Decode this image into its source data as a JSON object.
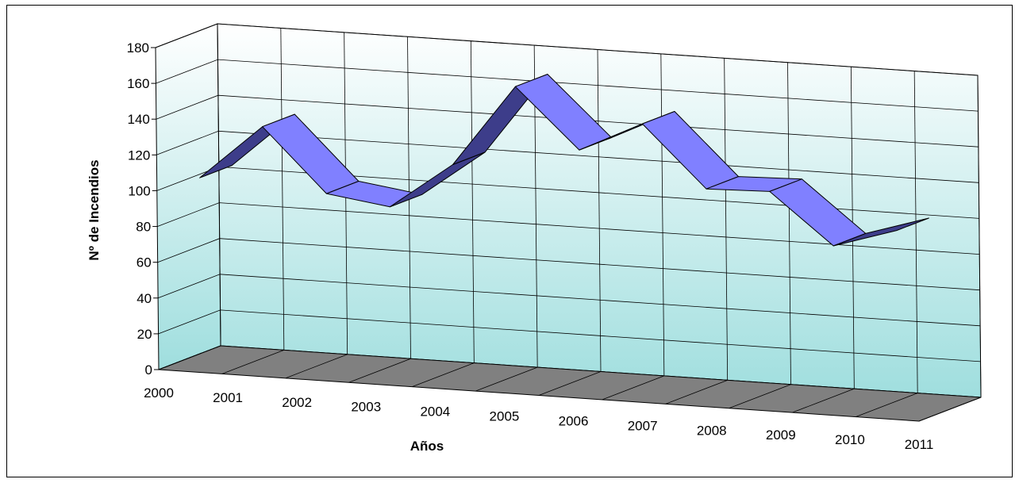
{
  "chart_data": {
    "type": "line",
    "style": "3d-ribbon",
    "categories": [
      "2000",
      "2001",
      "2002",
      "2003",
      "2004",
      "2005",
      "2006",
      "2007",
      "2008",
      "2009",
      "2010",
      "2011"
    ],
    "series": [
      {
        "values": [
          106,
          137,
          102,
          97,
          123,
          169,
          136,
          153,
          119,
          120,
          92,
          103
        ],
        "color": "#8080ff"
      }
    ],
    "xlabel": "Años",
    "ylabel": "Nº de Incendios",
    "ylim": [
      0,
      180
    ],
    "yticks": [
      "0",
      "20",
      "40",
      "60",
      "80",
      "100",
      "120",
      "140",
      "160",
      "180"
    ],
    "grid": true,
    "legend": "none",
    "colors": {
      "wall_top": "#ffffff",
      "wall_bottom": "#9fdede",
      "floor": "#808080",
      "ribbon_top": "#8080ff",
      "ribbon_side": "#3d3d8a"
    }
  }
}
